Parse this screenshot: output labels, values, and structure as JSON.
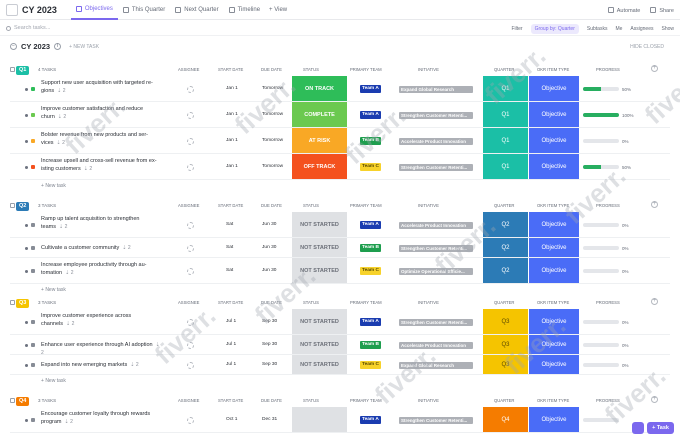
{
  "app": {
    "title": "CY 2023",
    "tabs": [
      {
        "label": "Objectives",
        "active": true
      },
      {
        "label": "This Quarter",
        "active": false
      },
      {
        "label": "Next Quarter",
        "active": false
      },
      {
        "label": "Timeline",
        "active": false
      }
    ],
    "view_label": "+ View",
    "automate_label": "Automate",
    "share_label": "Share"
  },
  "toolbar": {
    "search_placeholder": "Search tasks...",
    "filter_label": "Filter",
    "group_by_label": "Group by: Quarter",
    "subtasks_label": "Subtasks",
    "me_label": "Me",
    "assignees_label": "Assignees",
    "show_label": "Show"
  },
  "list": {
    "title": "CY 2023",
    "new_task_label": "+ NEW TASK",
    "hide_closed_label": "HIDE CLOSED"
  },
  "columns": {
    "assignee": "ASSIGNEE",
    "start": "START DATE",
    "due": "DUE DATE",
    "status": "STATUS",
    "team": "PRIMARY TEAM",
    "initiative": "INITIATIVE",
    "quarter": "QUARTER",
    "okr": "OKR ITEM TYPE",
    "progress": "PROGRESS"
  },
  "colors": {
    "accent": "#7b68ee",
    "on_track": "#2ebd59",
    "complete": "#6bc950",
    "at_risk": "#f9a825",
    "off_track": "#f4511e",
    "not_started": "#dfe1e4",
    "team_a": "#1a3cb0",
    "team_b": "#1e9e4e",
    "team_c": "#f7d22b",
    "q1": "#1bbfa6",
    "q2": "#2c7bb6",
    "q3": "#f5c400",
    "q4": "#f57c00",
    "okr": "#4a6cf7"
  },
  "groups": [
    {
      "tag": "Q1",
      "count": "4 TASKS",
      "new_task": "New task",
      "rows": [
        {
          "name": "Support new user acquisition with targeted re-gions",
          "sub": "2",
          "start": "Jan 1",
          "due": "Tomorrow",
          "status": "ON TRACK",
          "status_key": "on_track",
          "team": "Team A",
          "team_key": "team_a",
          "initiative": "Expand Global Research",
          "quarter": "Q1",
          "okr": "Objective",
          "progress": 50,
          "progress_text": "50%",
          "prio": "#2ebd59"
        },
        {
          "name": "Improve customer satisfaction and reduce churn",
          "sub": "2",
          "start": "Jan 1",
          "due": "Tomorrow",
          "status": "COMPLETE",
          "status_key": "complete",
          "team": "Team A",
          "team_key": "team_a",
          "initiative": "Strengthen Customer Retenti...",
          "quarter": "Q1",
          "okr": "Objective",
          "progress": 100,
          "progress_text": "100%",
          "prio": "#2ebd59"
        },
        {
          "name": "Bolster revenue from new products and ser-vices",
          "sub": "2",
          "start": "Jan 1",
          "due": "Tomorrow",
          "status": "AT RISK",
          "status_key": "at_risk",
          "team": "Team B",
          "team_key": "team_b",
          "initiative": "Accelerate Product Innovation",
          "quarter": "Q1",
          "okr": "Objective",
          "progress": 0,
          "progress_text": "0%",
          "prio": "#f9a825"
        },
        {
          "name": "Increase upsell and cross-sell revenue from ex-isting customers",
          "sub": "2",
          "start": "Jan 1",
          "due": "Tomorrow",
          "status": "OFF TRACK",
          "status_key": "off_track",
          "team": "Team C",
          "team_key": "team_c",
          "initiative": "Strengthen Customer Retenti...",
          "quarter": "Q1",
          "okr": "Objective",
          "progress": 50,
          "progress_text": "50%",
          "prio": "#f4511e"
        }
      ]
    },
    {
      "tag": "Q2",
      "count": "3 TASKS",
      "new_task": "New task",
      "rows": [
        {
          "name": "Ramp up talent acquisition to strengthen teams",
          "sub": "2",
          "start": "Sat",
          "due": "Jun 30",
          "status": "NOT STARTED",
          "status_key": "not_started",
          "team": "Team A",
          "team_key": "team_a",
          "initiative": "Accelerate Product Innovation",
          "quarter": "Q2",
          "okr": "Objective",
          "progress": 0,
          "progress_text": "0%",
          "prio": "#6e7380"
        },
        {
          "name": "Cultivate a customer community",
          "sub": "2",
          "start": "Sat",
          "due": "Jun 30",
          "status": "NOT STARTED",
          "status_key": "not_started",
          "team": "Team B",
          "team_key": "team_b",
          "initiative": "Strengthen Customer Retenti...",
          "quarter": "Q2",
          "okr": "Objective",
          "progress": 0,
          "progress_text": "0%",
          "prio": "#6e7380"
        },
        {
          "name": "Increase employee productivity through au-tomation",
          "sub": "2",
          "start": "Sat",
          "due": "Jun 30",
          "status": "NOT STARTED",
          "status_key": "not_started",
          "team": "Team C",
          "team_key": "team_c",
          "initiative": "Optimize Operational Efficie...",
          "quarter": "Q2",
          "okr": "Objective",
          "progress": 0,
          "progress_text": "0%",
          "prio": "#6e7380"
        }
      ]
    },
    {
      "tag": "Q3",
      "count": "3 TASKS",
      "new_task": "New task",
      "rows": [
        {
          "name": "Improve customer experience across channels",
          "sub": "2",
          "start": "Jul 1",
          "due": "Sep 30",
          "status": "NOT STARTED",
          "status_key": "not_started",
          "team": "Team A",
          "team_key": "team_a",
          "initiative": "Strengthen Customer Retenti...",
          "quarter": "Q3",
          "okr": "Objective",
          "progress": 0,
          "progress_text": "0%",
          "prio": "#6e7380"
        },
        {
          "name": "Enhance user experience through AI adoption",
          "sub": "2",
          "start": "Jul 1",
          "due": "Sep 30",
          "status": "NOT STARTED",
          "status_key": "not_started",
          "team": "Team B",
          "team_key": "team_b",
          "initiative": "Accelerate Product Innovation",
          "quarter": "Q3",
          "okr": "Objective",
          "progress": 0,
          "progress_text": "0%",
          "prio": "#6e7380"
        },
        {
          "name": "Expand into new emerging markets",
          "sub": "2",
          "start": "Jul 1",
          "due": "Sep 30",
          "status": "NOT STARTED",
          "status_key": "not_started",
          "team": "Team C",
          "team_key": "team_c",
          "initiative": "Expand Global Research",
          "quarter": "Q3",
          "okr": "Objective",
          "progress": 0,
          "progress_text": "0%",
          "prio": "#6e7380"
        }
      ]
    },
    {
      "tag": "Q4",
      "count": "3 TASKS",
      "new_task": "",
      "rows": [
        {
          "name": "Encourage customer loyalty through rewards program",
          "sub": "2",
          "start": "Oct 1",
          "due": "Dec 31",
          "status": "",
          "status_key": "not_started",
          "team": "Team A",
          "team_key": "team_a",
          "initiative": "Strengthen Customer Retenti...",
          "quarter": "Q4",
          "okr": "Objective",
          "progress": 0,
          "progress_text": "",
          "prio": "#6e7380"
        }
      ]
    }
  ],
  "watermark": "fiverr.",
  "fab": {
    "task_label": "Task"
  }
}
